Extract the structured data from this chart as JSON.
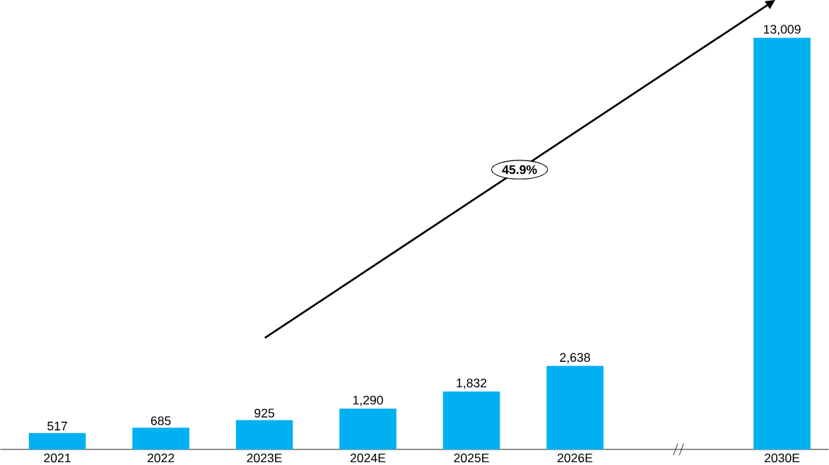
{
  "chart_data": {
    "type": "bar",
    "categories": [
      "2021",
      "2022",
      "2023E",
      "2024E",
      "2025E",
      "2026E",
      null,
      "2030E"
    ],
    "values": [
      517,
      685,
      925,
      1290,
      1832,
      2638,
      null,
      13009
    ],
    "value_labels": [
      "517",
      "685",
      "925",
      "1,290",
      "1,832",
      "2,638",
      null,
      "13,009"
    ],
    "color": "#00b0f0",
    "tick_labels": "x",
    "annotations": [
      "45.9%"
    ]
  }
}
